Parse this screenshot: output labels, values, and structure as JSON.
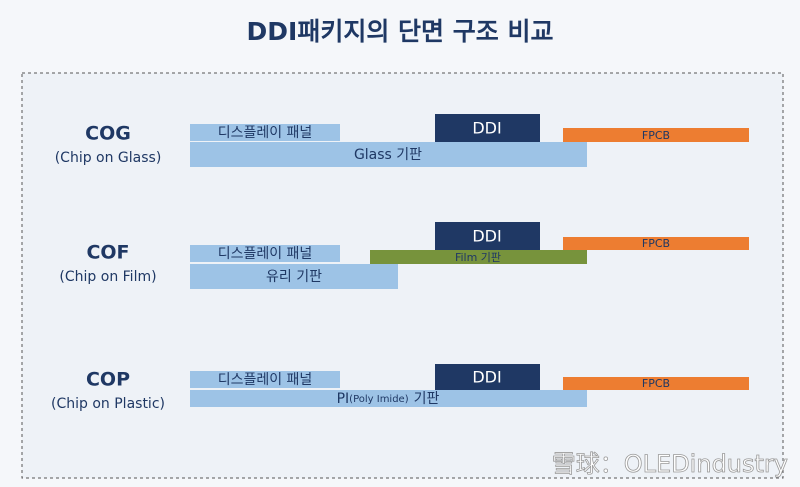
{
  "title": "DDI패키지의 단면 구조 비교",
  "rows": [
    {
      "code": "COG",
      "name": "(Chip on Glass)",
      "panel": "디스플레이 패널",
      "chip": "DDI",
      "fpcb": "FPCB",
      "substrate": "Glass 기판"
    },
    {
      "code": "COF",
      "name": "(Chip on Film)",
      "panel": "디스플레이 패널",
      "chip": "DDI",
      "fpcb": "FPCB",
      "film": "Film 기판",
      "substrate": "유리 기판"
    },
    {
      "code": "COP",
      "name": "(Chip on Plastic)",
      "panel": "디스플레이 패널",
      "chip": "DDI",
      "fpcb": "FPCB",
      "substrate_main": "PI",
      "substrate_note": "(Poly Imide)",
      "substrate_tail": "기판"
    }
  ],
  "watermark": "雪球：OLEDindustry"
}
